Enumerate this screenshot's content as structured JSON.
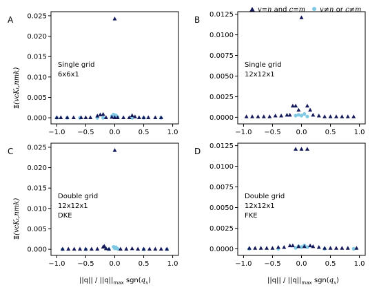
{
  "colors": {
    "diag": "#14195a",
    "offdiag": "#7ec8e3",
    "text": "#000000"
  },
  "legend": {
    "diag_math1": "v=n",
    "diag_and": " and ",
    "diag_math2": "c=m",
    "off_math1": "v≠n",
    "off_or": " or ",
    "off_math2": "c≠m"
  },
  "ylabel": {
    "xi": "Ξ",
    "rest": "(vcKₜ,nmk)"
  },
  "xlabel": {
    "pre": "||q|| / ||q||",
    "sub": "max",
    "post": " sgn(",
    "var": "q",
    "varsub": "x",
    "close": ")"
  },
  "chart_data": [
    {
      "type": "scatter",
      "panel": "A",
      "annotation": [
        "Single grid",
        "6x6x1"
      ],
      "xlim": [
        -1.1,
        1.1
      ],
      "ylim": [
        -0.0015,
        0.026
      ],
      "xticks": [
        "−1.0",
        "−0.5",
        "0.0",
        "0.5",
        "1.0"
      ],
      "xtick_vals": [
        -1.0,
        -0.5,
        0.0,
        0.5,
        1.0
      ],
      "yticks": [
        "0.000",
        "0.005",
        "0.010",
        "0.015",
        "0.020",
        "0.025"
      ],
      "ytick_vals": [
        0.0,
        0.005,
        0.01,
        0.015,
        0.02,
        0.025
      ],
      "series": [
        {
          "name": "v=n and c=m",
          "marker": "triangle",
          "points": [
            [
              0.0,
              0.0243
            ],
            [
              -1.0,
              0.0001
            ],
            [
              -0.93,
              0.0001
            ],
            [
              -0.82,
              0.0001
            ],
            [
              -0.71,
              0.0001
            ],
            [
              -0.58,
              0.0001
            ],
            [
              -0.5,
              0.0001
            ],
            [
              -0.42,
              0.0001
            ],
            [
              -0.3,
              0.0005
            ],
            [
              -0.25,
              0.0008
            ],
            [
              -0.2,
              0.0009
            ],
            [
              -0.15,
              0.0001
            ],
            [
              -0.05,
              0.0002
            ],
            [
              0.0,
              0.0001
            ],
            [
              0.05,
              0.0001
            ],
            [
              0.15,
              0.0001
            ],
            [
              0.25,
              0.0001
            ],
            [
              0.3,
              0.0006
            ],
            [
              0.35,
              0.0003
            ],
            [
              0.42,
              0.0001
            ],
            [
              0.5,
              0.0001
            ],
            [
              0.58,
              0.0001
            ],
            [
              0.7,
              0.0001
            ],
            [
              0.8,
              0.0001
            ]
          ]
        },
        {
          "name": "v≠n or c≠m",
          "marker": "circle",
          "points": [
            [
              -1.0,
              0.0
            ],
            [
              -0.82,
              0.0
            ],
            [
              -0.6,
              0.0
            ],
            [
              -0.3,
              0.0
            ],
            [
              -0.2,
              0.0
            ],
            [
              -0.05,
              0.0004
            ],
            [
              -0.02,
              0.0008
            ],
            [
              0.0,
              0.0002
            ],
            [
              0.02,
              0.0006
            ],
            [
              0.05,
              0.0002
            ],
            [
              0.3,
              0.0
            ],
            [
              0.5,
              0.0
            ],
            [
              0.8,
              0.0
            ]
          ]
        }
      ]
    },
    {
      "type": "scatter",
      "panel": "B",
      "annotation": [
        "Single grid",
        "12x12x1"
      ],
      "xlim": [
        -1.1,
        1.1
      ],
      "ylim": [
        -0.0008,
        0.0128
      ],
      "xticks": [
        "−1.0",
        "−0.5",
        "0.0",
        "0.5",
        "1.0"
      ],
      "xtick_vals": [
        -1.0,
        -0.5,
        0.0,
        0.5,
        1.0
      ],
      "yticks": [
        "0.0000",
        "0.0025",
        "0.0050",
        "0.0075",
        "0.0100",
        "0.0125"
      ],
      "ytick_vals": [
        0.0,
        0.0025,
        0.005,
        0.0075,
        0.01,
        0.0125
      ],
      "series": [
        {
          "name": "v=n and c=m",
          "marker": "triangle",
          "points": [
            [
              0.0,
              0.0121
            ],
            [
              -0.15,
              0.0014
            ],
            [
              -0.1,
              0.0014
            ],
            [
              -0.05,
              0.0009
            ],
            [
              0.1,
              0.0014
            ],
            [
              0.15,
              0.0009
            ],
            [
              -0.95,
              0.0001
            ],
            [
              -0.85,
              0.0001
            ],
            [
              -0.75,
              0.0001
            ],
            [
              -0.65,
              0.0001
            ],
            [
              -0.55,
              0.0001
            ],
            [
              -0.45,
              0.0002
            ],
            [
              -0.35,
              0.0002
            ],
            [
              -0.25,
              0.0003
            ],
            [
              -0.2,
              0.0003
            ],
            [
              0.2,
              0.0003
            ],
            [
              0.3,
              0.0002
            ],
            [
              0.4,
              0.0001
            ],
            [
              0.5,
              0.0001
            ],
            [
              0.6,
              0.0001
            ],
            [
              0.7,
              0.0001
            ],
            [
              0.8,
              0.0001
            ],
            [
              0.9,
              0.0001
            ]
          ]
        },
        {
          "name": "v≠n or c≠m",
          "marker": "circle",
          "points": [
            [
              -0.1,
              0.0002
            ],
            [
              -0.05,
              0.0003
            ],
            [
              0.0,
              0.0002
            ],
            [
              0.05,
              0.0004
            ],
            [
              0.1,
              0.0001
            ]
          ]
        }
      ]
    },
    {
      "type": "scatter",
      "panel": "C",
      "annotation": [
        "Double grid",
        "12x12x1",
        "DKE"
      ],
      "xlim": [
        -1.1,
        1.1
      ],
      "ylim": [
        -0.0015,
        0.026
      ],
      "xticks": [
        "−1.0",
        "−0.5",
        "0.0",
        "0.5",
        "1.0"
      ],
      "xtick_vals": [
        -1.0,
        -0.5,
        0.0,
        0.5,
        1.0
      ],
      "yticks": [
        "0.000",
        "0.005",
        "0.010",
        "0.015",
        "0.020",
        "0.025"
      ],
      "ytick_vals": [
        0.0,
        0.005,
        0.01,
        0.015,
        0.02,
        0.025
      ],
      "series": [
        {
          "name": "v=n and c=m",
          "marker": "triangle",
          "points": [
            [
              0.0,
              0.0243
            ],
            [
              -0.9,
              0.0001
            ],
            [
              -0.8,
              0.0001
            ],
            [
              -0.7,
              0.0001
            ],
            [
              -0.6,
              0.0001
            ],
            [
              -0.5,
              0.0001
            ],
            [
              -0.4,
              0.0001
            ],
            [
              -0.3,
              0.0001
            ],
            [
              -0.2,
              0.0006
            ],
            [
              -0.18,
              0.0008
            ],
            [
              -0.15,
              0.0002
            ],
            [
              -0.1,
              0.0001
            ],
            [
              0.1,
              0.0001
            ],
            [
              0.2,
              0.0001
            ],
            [
              0.3,
              0.0002
            ],
            [
              0.4,
              0.0001
            ],
            [
              0.5,
              0.0001
            ],
            [
              0.6,
              0.0001
            ],
            [
              0.7,
              0.0001
            ],
            [
              0.8,
              0.0001
            ],
            [
              0.9,
              0.0001
            ]
          ]
        },
        {
          "name": "v≠n or c≠m",
          "marker": "circle",
          "points": [
            [
              -0.9,
              0.0
            ],
            [
              -0.5,
              0.0
            ],
            [
              -0.1,
              0.0
            ],
            [
              -0.02,
              0.0006
            ],
            [
              0.0,
              0.0002
            ],
            [
              0.02,
              0.0005
            ],
            [
              0.05,
              0.0001
            ],
            [
              0.5,
              0.0
            ],
            [
              0.9,
              0.0
            ]
          ]
        }
      ]
    },
    {
      "type": "scatter",
      "panel": "D",
      "annotation": [
        "Double grid",
        "12x12x1",
        "FKE"
      ],
      "xlim": [
        -1.1,
        1.1
      ],
      "ylim": [
        -0.0008,
        0.0128
      ],
      "xticks": [
        "−1.0",
        "−0.5",
        "0.0",
        "0.5",
        "1.0"
      ],
      "xtick_vals": [
        -1.0,
        -0.5,
        0.0,
        0.5,
        1.0
      ],
      "yticks": [
        "0.0000",
        "0.0025",
        "0.0050",
        "0.0075",
        "0.0100",
        "0.0125"
      ],
      "ytick_vals": [
        0.0,
        0.0025,
        0.005,
        0.0075,
        0.01,
        0.0125
      ],
      "series": [
        {
          "name": "v=n and c=m",
          "marker": "triangle",
          "points": [
            [
              -0.1,
              0.0121
            ],
            [
              0.0,
              0.0121
            ],
            [
              0.1,
              0.0121
            ],
            [
              -0.9,
              0.0001
            ],
            [
              -0.8,
              0.0001
            ],
            [
              -0.7,
              0.0001
            ],
            [
              -0.6,
              0.0001
            ],
            [
              -0.5,
              0.0001
            ],
            [
              -0.4,
              0.0002
            ],
            [
              -0.3,
              0.0002
            ],
            [
              -0.2,
              0.0004
            ],
            [
              -0.15,
              0.0004
            ],
            [
              -0.05,
              0.0003
            ],
            [
              0.05,
              0.0003
            ],
            [
              0.15,
              0.0004
            ],
            [
              0.2,
              0.0003
            ],
            [
              0.3,
              0.0002
            ],
            [
              0.4,
              0.0001
            ],
            [
              0.5,
              0.0001
            ],
            [
              0.6,
              0.0001
            ],
            [
              0.7,
              0.0001
            ],
            [
              0.8,
              0.0001
            ],
            [
              0.95,
              0.0001
            ]
          ]
        },
        {
          "name": "v≠n or c≠m",
          "marker": "circle",
          "points": [
            [
              -0.9,
              0.0
            ],
            [
              -0.4,
              0.0
            ],
            [
              -0.1,
              0.0001
            ],
            [
              -0.05,
              0.0003
            ],
            [
              0.0,
              0.0002
            ],
            [
              0.05,
              0.0004
            ],
            [
              0.1,
              0.0002
            ],
            [
              0.4,
              0.0
            ],
            [
              0.9,
              0.0
            ]
          ]
        }
      ]
    }
  ]
}
